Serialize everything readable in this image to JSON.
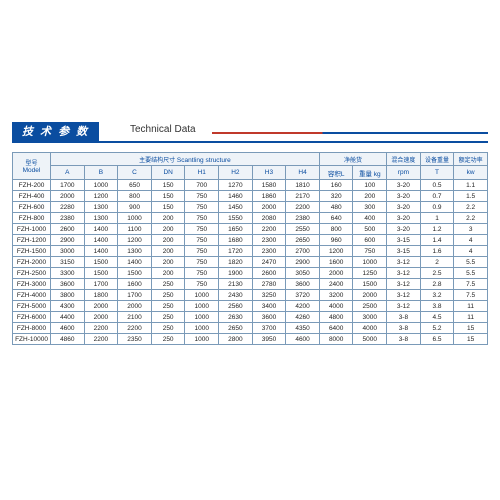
{
  "title_cn": "技 术 参 数",
  "title_en": "Technical Data",
  "header": {
    "model_cn": "型号",
    "model_en": "Model",
    "scantling_cn": "主要结构尺寸",
    "scantling_en": "Scantling structure",
    "cols": [
      "A",
      "B",
      "C",
      "DN",
      "H1",
      "H2",
      "H3",
      "H4"
    ],
    "net_cn": "净舱货",
    "vol": "容积L",
    "wt": "重量 kg",
    "speed_cn": "混合速度",
    "speed_u": "rpm",
    "dev_cn": "设备重量",
    "dev_u": "T",
    "pow_cn": "额定功率",
    "pow_u": "kw"
  },
  "rows": [
    [
      "FZH-200",
      "1700",
      "1000",
      "650",
      "150",
      "700",
      "1270",
      "1580",
      "1810",
      "160",
      "100",
      "3-20",
      "0.5",
      "1.1"
    ],
    [
      "FZH-400",
      "2000",
      "1200",
      "800",
      "150",
      "750",
      "1460",
      "1860",
      "2170",
      "320",
      "200",
      "3-20",
      "0.7",
      "1.5"
    ],
    [
      "FZH-600",
      "2280",
      "1300",
      "900",
      "150",
      "750",
      "1450",
      "2000",
      "2200",
      "480",
      "300",
      "3-20",
      "0.9",
      "2.2"
    ],
    [
      "FZH-800",
      "2380",
      "1300",
      "1000",
      "200",
      "750",
      "1550",
      "2080",
      "2380",
      "640",
      "400",
      "3-20",
      "1",
      "2.2"
    ],
    [
      "FZH-1000",
      "2600",
      "1400",
      "1100",
      "200",
      "750",
      "1650",
      "2200",
      "2550",
      "800",
      "500",
      "3-20",
      "1.2",
      "3"
    ],
    [
      "FZH-1200",
      "2900",
      "1400",
      "1200",
      "200",
      "750",
      "1680",
      "2300",
      "2650",
      "960",
      "600",
      "3-15",
      "1.4",
      "4"
    ],
    [
      "FZH-1500",
      "3000",
      "1400",
      "1300",
      "200",
      "750",
      "1720",
      "2300",
      "2700",
      "1200",
      "750",
      "3-15",
      "1.6",
      "4"
    ],
    [
      "FZH-2000",
      "3150",
      "1500",
      "1400",
      "200",
      "750",
      "1820",
      "2470",
      "2900",
      "1600",
      "1000",
      "3-12",
      "2",
      "5.5"
    ],
    [
      "FZH-2500",
      "3300",
      "1500",
      "1500",
      "200",
      "750",
      "1900",
      "2600",
      "3050",
      "2000",
      "1250",
      "3-12",
      "2.5",
      "5.5"
    ],
    [
      "FZH-3000",
      "3600",
      "1700",
      "1600",
      "250",
      "750",
      "2130",
      "2780",
      "3600",
      "2400",
      "1500",
      "3-12",
      "2.8",
      "7.5"
    ],
    [
      "FZH-4000",
      "3800",
      "1800",
      "1700",
      "250",
      "1000",
      "2430",
      "3250",
      "3720",
      "3200",
      "2000",
      "3-12",
      "3.2",
      "7.5"
    ],
    [
      "FZH-5000",
      "4300",
      "2000",
      "2000",
      "250",
      "1000",
      "2560",
      "3400",
      "4200",
      "4000",
      "2500",
      "3-12",
      "3.8",
      "11"
    ],
    [
      "FZH-6000",
      "4400",
      "2000",
      "2100",
      "250",
      "1000",
      "2630",
      "3600",
      "4260",
      "4800",
      "3000",
      "3-8",
      "4.5",
      "11"
    ],
    [
      "FZH-8000",
      "4600",
      "2200",
      "2200",
      "250",
      "1000",
      "2650",
      "3700",
      "4350",
      "6400",
      "4000",
      "3-8",
      "5.2",
      "15"
    ],
    [
      "FZH-10000",
      "4860",
      "2200",
      "2350",
      "250",
      "1000",
      "2800",
      "3950",
      "4600",
      "8000",
      "5000",
      "3-8",
      "6.5",
      "15"
    ]
  ]
}
